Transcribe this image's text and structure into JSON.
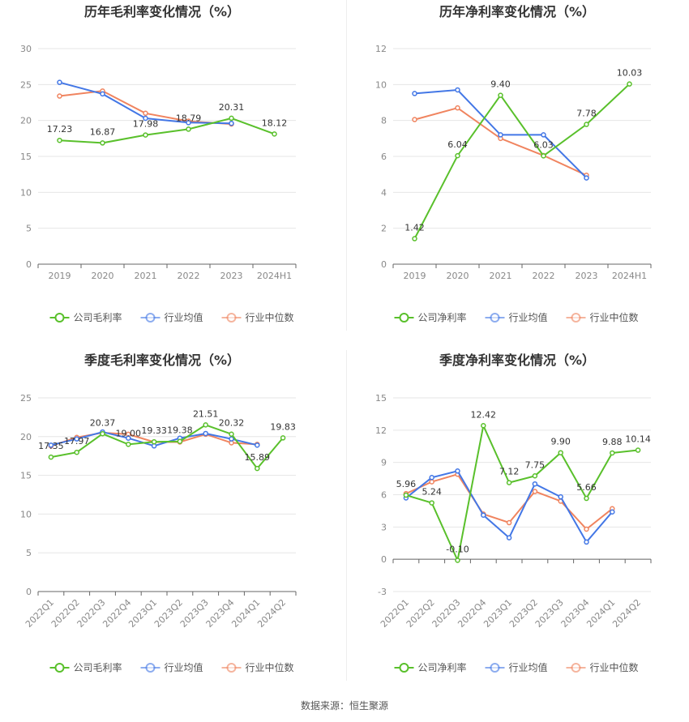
{
  "colors": {
    "company": "#59c02b",
    "avg": "#4377e6",
    "median": "#f0845f",
    "grid": "#e6e6e6",
    "axis": "#666666"
  },
  "source": "数据来源：恒生聚源",
  "chart_data": [
    {
      "type": "line",
      "title": "历年毛利率变化情况（%）",
      "categories": [
        "2019",
        "2020",
        "2021",
        "2022",
        "2023",
        "2024H1"
      ],
      "ylim": [
        0,
        30
      ],
      "yticks": [
        "0",
        "5",
        "10",
        "15",
        "20",
        "25",
        "30"
      ],
      "tick_rotation": 0,
      "grid": true,
      "legend_position": "bottom",
      "series": [
        {
          "name": "公司毛利率",
          "role": "company",
          "values": [
            17.23,
            16.87,
            17.98,
            18.79,
            20.31,
            18.12
          ],
          "labels": [
            "17.23",
            "16.87",
            "17.98",
            "18.79",
            "20.31",
            "18.12"
          ]
        },
        {
          "name": "行业均值",
          "role": "avg",
          "values": [
            25.3,
            23.7,
            20.3,
            19.7,
            19.6,
            null
          ]
        },
        {
          "name": "行业中位数",
          "role": "median",
          "values": [
            23.4,
            24.1,
            21.0,
            19.9,
            19.5,
            null
          ]
        }
      ]
    },
    {
      "type": "line",
      "title": "历年净利率变化情况（%）",
      "categories": [
        "2019",
        "2020",
        "2021",
        "2022",
        "2023",
        "2024H1"
      ],
      "ylim": [
        0,
        12
      ],
      "yticks": [
        "0",
        "2",
        "4",
        "6",
        "8",
        "10",
        "12"
      ],
      "tick_rotation": 0,
      "grid": true,
      "legend_position": "bottom",
      "series": [
        {
          "name": "公司净利率",
          "role": "company",
          "values": [
            1.42,
            6.04,
            9.4,
            6.03,
            7.78,
            10.03
          ],
          "labels": [
            "1.42",
            "6.04",
            "9.40",
            "6.03",
            "7.78",
            "10.03"
          ]
        },
        {
          "name": "行业均值",
          "role": "avg",
          "values": [
            9.5,
            9.7,
            7.2,
            7.2,
            4.8,
            null
          ]
        },
        {
          "name": "行业中位数",
          "role": "median",
          "values": [
            8.05,
            8.7,
            7.0,
            6.05,
            4.95,
            null
          ]
        }
      ]
    },
    {
      "type": "line",
      "title": "季度毛利率变化情况（%）",
      "categories": [
        "2022Q1",
        "2022Q2",
        "2022Q3",
        "2022Q4",
        "2023Q1",
        "2023Q2",
        "2023Q3",
        "2023Q4",
        "2024Q1",
        "2024Q2"
      ],
      "ylim": [
        0,
        25
      ],
      "yticks": [
        "0",
        "5",
        "10",
        "15",
        "20",
        "25"
      ],
      "tick_rotation": -45,
      "grid": true,
      "legend_position": "bottom",
      "series": [
        {
          "name": "公司毛利率",
          "role": "company",
          "values": [
            17.35,
            17.97,
            20.37,
            19.0,
            19.33,
            19.38,
            21.51,
            20.32,
            15.89,
            19.83
          ],
          "labels": [
            "17.35",
            "17.97",
            "20.37",
            "19.00",
            "19.33",
            "19.38",
            "21.51",
            "20.32",
            "15.89",
            "19.83"
          ]
        },
        {
          "name": "行业均值",
          "role": "avg",
          "values": [
            18.9,
            19.7,
            20.6,
            19.8,
            18.8,
            19.8,
            20.4,
            19.7,
            18.9,
            null
          ]
        },
        {
          "name": "行业中位数",
          "role": "median",
          "values": [
            18.8,
            19.9,
            20.5,
            20.3,
            19.3,
            19.3,
            20.3,
            19.2,
            19.0,
            null
          ]
        }
      ]
    },
    {
      "type": "line",
      "title": "季度净利率变化情况（%）",
      "categories": [
        "2022Q1",
        "2022Q2",
        "2022Q3",
        "2022Q4",
        "2023Q1",
        "2023Q2",
        "2023Q3",
        "2023Q4",
        "2024Q1",
        "2024Q2"
      ],
      "ylim": [
        -3,
        15
      ],
      "yticks": [
        "-3",
        "0",
        "3",
        "6",
        "9",
        "12",
        "15"
      ],
      "tick_rotation": -45,
      "grid": true,
      "legend_position": "bottom",
      "series": [
        {
          "name": "公司净利率",
          "role": "company",
          "values": [
            5.96,
            5.24,
            -0.1,
            12.42,
            7.12,
            7.75,
            9.9,
            5.66,
            9.88,
            10.14
          ],
          "labels": [
            "5.96",
            "5.24",
            "-0.10",
            "12.42",
            "7.12",
            "7.75",
            "9.90",
            "5.66",
            "9.88",
            "10.14"
          ]
        },
        {
          "name": "行业均值",
          "role": "avg",
          "values": [
            5.7,
            7.6,
            8.2,
            4.1,
            2.0,
            7.0,
            5.8,
            1.6,
            4.4,
            null
          ]
        },
        {
          "name": "行业中位数",
          "role": "median",
          "values": [
            6.1,
            7.2,
            7.9,
            4.2,
            3.4,
            6.3,
            5.4,
            2.8,
            4.7,
            null
          ]
        }
      ]
    }
  ]
}
